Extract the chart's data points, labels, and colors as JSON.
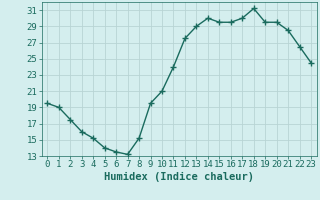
{
  "x": [
    0,
    1,
    2,
    3,
    4,
    5,
    6,
    7,
    8,
    9,
    10,
    11,
    12,
    13,
    14,
    15,
    16,
    17,
    18,
    19,
    20,
    21,
    22,
    23
  ],
  "y": [
    19.5,
    19.0,
    17.5,
    16.0,
    15.2,
    14.0,
    13.5,
    13.2,
    15.2,
    19.5,
    21.0,
    24.0,
    27.5,
    29.0,
    30.0,
    29.5,
    29.5,
    30.0,
    31.2,
    29.5,
    29.5,
    28.5,
    26.5,
    24.5
  ],
  "line_color": "#1a6b5e",
  "marker": "+",
  "marker_size": 4,
  "bg_color": "#d4eeee",
  "grid_color": "#b8d4d4",
  "xlabel": "Humidex (Indice chaleur)",
  "xlim": [
    -0.5,
    23.5
  ],
  "ylim": [
    13,
    32
  ],
  "yticks": [
    13,
    15,
    17,
    19,
    21,
    23,
    25,
    27,
    29,
    31
  ],
  "xticks": [
    0,
    1,
    2,
    3,
    4,
    5,
    6,
    7,
    8,
    9,
    10,
    11,
    12,
    13,
    14,
    15,
    16,
    17,
    18,
    19,
    20,
    21,
    22,
    23
  ],
  "xlabel_fontsize": 7.5,
  "tick_fontsize": 6.5,
  "line_width": 1.0
}
